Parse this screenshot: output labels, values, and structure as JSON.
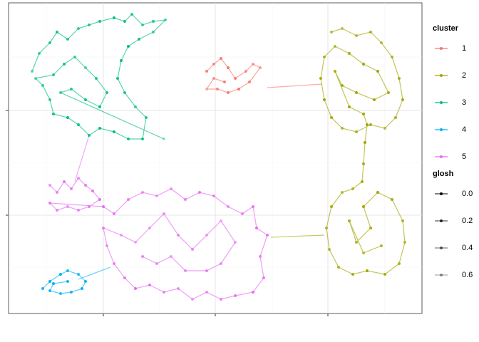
{
  "chart_data": {
    "type": "scatter",
    "xlim": [
      0,
      580
    ],
    "ylim": [
      0,
      436
    ],
    "xticks": [
      133,
      290,
      448
    ],
    "yticks": [
      138,
      285
    ],
    "xminor": [
      53,
      212,
      370,
      528
    ],
    "yminor": [
      65,
      212,
      360
    ],
    "grid": true,
    "legend": {
      "title": "cluster"
    },
    "glosh_legend": {
      "title": "glosh",
      "values": [
        {
          "value": 0,
          "label": "0.0"
        },
        {
          "value": 0.2,
          "label": "0.2"
        },
        {
          "value": 0.4,
          "label": "0.4"
        },
        {
          "value": 0.6,
          "label": "0.6"
        }
      ]
    },
    "series": [
      {
        "name": "1",
        "color": "#F8766D",
        "x": [
          278,
          288,
          298,
          308,
          318,
          333,
          343,
          353,
          338,
          323,
          308,
          293,
          278,
          288,
          303
        ],
        "y": [
          340,
          350,
          358,
          345,
          330,
          340,
          350,
          345,
          325,
          315,
          310,
          315,
          315,
          330,
          325
        ],
        "glosh": [
          0.1,
          0.2,
          0.1,
          0,
          0.1,
          0.2,
          0.3,
          0.4,
          0.1,
          0,
          0.1,
          0.2,
          0.5,
          0.3,
          0.1
        ]
      },
      {
        "name": "2",
        "color": "#A3A500",
        "x": [
          453,
          468,
          488,
          508,
          523,
          538,
          548,
          553,
          543,
          528,
          508,
          488,
          468,
          453,
          443,
          438,
          443,
          458,
          478,
          498,
          518,
          533,
          513,
          488,
          468,
          458,
          478,
          498,
          503,
          500,
          498,
          496,
          483,
          468,
          453,
          446,
          450,
          463,
          483,
          503,
          528,
          548,
          556,
          553,
          538,
          518,
          498,
          508,
          488,
          478,
          498,
          523
        ],
        "y": [
          395,
          400,
          390,
          395,
          380,
          360,
          330,
          300,
          275,
          260,
          265,
          255,
          260,
          275,
          300,
          330,
          360,
          375,
          365,
          350,
          340,
          310,
          300,
          310,
          320,
          340,
          290,
          280,
          265,
          240,
          210,
          185,
          175,
          170,
          150,
          120,
          90,
          65,
          55,
          60,
          55,
          70,
          100,
          130,
          160,
          170,
          150,
          120,
          100,
          130,
          85,
          95
        ],
        "glosh": [
          0.3,
          0.4,
          0.3,
          0.2,
          0.3,
          0.2,
          0.1,
          0.1,
          0.2,
          0.3,
          0.1,
          0.2,
          0.3,
          0.1,
          0,
          0.1,
          0.2,
          0.3,
          0.1,
          0,
          0,
          0.1,
          0,
          0,
          0.1,
          0.1,
          0,
          0,
          0,
          0,
          0.1,
          0.1,
          0.2,
          0.3,
          0.1,
          0.2,
          0.3,
          0.2,
          0.1,
          0,
          0.1,
          0.2,
          0.3,
          0.2,
          0.1,
          0,
          0,
          0.1,
          0.2,
          0.1,
          0.3,
          0.2
        ]
      },
      {
        "name": "3",
        "color": "#00BF7D",
        "x": [
          33,
          43,
          58,
          68,
          83,
          98,
          113,
          128,
          148,
          163,
          173,
          188,
          203,
          220,
          203,
          183,
          168,
          158,
          153,
          163,
          178,
          193,
          188,
          168,
          148,
          128,
          113,
          98,
          83,
          63,
          58,
          48,
          38,
          63,
          78,
          93,
          108,
          123,
          138,
          128,
          108,
          88,
          73,
          218
        ],
        "y": [
          340,
          365,
          380,
          395,
          385,
          400,
          405,
          410,
          415,
          410,
          420,
          405,
          410,
          412,
          395,
          385,
          375,
          355,
          330,
          310,
          290,
          275,
          245,
          245,
          255,
          260,
          250,
          265,
          275,
          280,
          300,
          320,
          330,
          335,
          350,
          360,
          345,
          330,
          310,
          290,
          300,
          315,
          310,
          245
        ],
        "glosh": [
          0.4,
          0.3,
          0.2,
          0.1,
          0.2,
          0.3,
          0.2,
          0.1,
          0,
          0.1,
          0.2,
          0.3,
          0.2,
          0.4,
          0.3,
          0.1,
          0,
          0,
          0.1,
          0.2,
          0.3,
          0.2,
          0.1,
          0.1,
          0,
          0,
          0.1,
          0.1,
          0,
          0.1,
          0.2,
          0.3,
          0.4,
          0.2,
          0.1,
          0.3,
          0.4,
          0.2,
          0.1,
          0,
          0.1,
          0.2,
          0.3,
          0.6
        ]
      },
      {
        "name": "4",
        "color": "#00B0F6",
        "x": [
          48,
          58,
          73,
          83,
          98,
          108,
          103,
          88,
          73,
          58,
          63,
          83
        ],
        "y": [
          35,
          45,
          55,
          60,
          55,
          45,
          35,
          30,
          28,
          32,
          42,
          45
        ],
        "glosh": [
          0.1,
          0,
          0,
          0.1,
          0.2,
          0.1,
          0,
          0.1,
          0.2,
          0.1,
          0,
          0.1
        ]
      },
      {
        "name": "5",
        "color": "#E76BF3",
        "x": [
          58,
          68,
          78,
          88,
          98,
          108,
          118,
          128,
          113,
          98,
          83,
          68,
          58,
          133,
          148,
          168,
          188,
          208,
          228,
          248,
          268,
          288,
          308,
          328,
          343,
          348,
          363,
          353,
          358,
          343,
          318,
          298,
          278,
          258,
          238,
          218,
          198,
          178,
          163,
          148,
          138,
          133,
          158,
          178,
          198,
          218,
          238,
          258,
          278,
          298,
          318,
          298,
          278,
          248,
          228,
          208,
          188
        ],
        "y": [
          180,
          170,
          185,
          175,
          190,
          180,
          172,
          160,
          150,
          145,
          150,
          145,
          155,
          150,
          140,
          160,
          170,
          165,
          175,
          160,
          170,
          165,
          150,
          140,
          150,
          120,
          110,
          80,
          50,
          30,
          25,
          20,
          30,
          20,
          35,
          30,
          40,
          35,
          50,
          70,
          95,
          120,
          110,
          100,
          120,
          140,
          110,
          90,
          110,
          130,
          100,
          70,
          60,
          60,
          80,
          70,
          80
        ],
        "glosh": [
          0.3,
          0.2,
          0.1,
          0.2,
          0.3,
          0.2,
          0.1,
          0,
          0.1,
          0.2,
          0.3,
          0.2,
          0.1,
          0,
          0.1,
          0.2,
          0.3,
          0.4,
          0.3,
          0.2,
          0.1,
          0.2,
          0.3,
          0.2,
          0.1,
          0,
          0.1,
          0.2,
          0.1,
          0,
          0.1,
          0.2,
          0.3,
          0.4,
          0.3,
          0.2,
          0.1,
          0,
          0.1,
          0.2,
          0.3,
          0.2,
          0.4,
          0.5,
          0.4,
          0.3,
          0.2,
          0.3,
          0.4,
          0.5,
          0.4,
          0.3,
          0.2,
          0.3,
          0.4,
          0.3,
          0.2
        ]
      }
    ],
    "links": [
      {
        "color": "#F8766D",
        "x": [
          363,
          440
        ],
        "y": [
          317,
          322
        ]
      },
      {
        "color": "#E76BF3",
        "x": [
          113,
          93
        ],
        "y": [
          250,
          185
        ]
      },
      {
        "color": "#00B0F6",
        "x": [
          143,
          98
        ],
        "y": [
          65,
          48
        ]
      },
      {
        "color": "#A3A500",
        "x": [
          368,
          443
        ],
        "y": [
          107,
          110
        ]
      }
    ]
  }
}
